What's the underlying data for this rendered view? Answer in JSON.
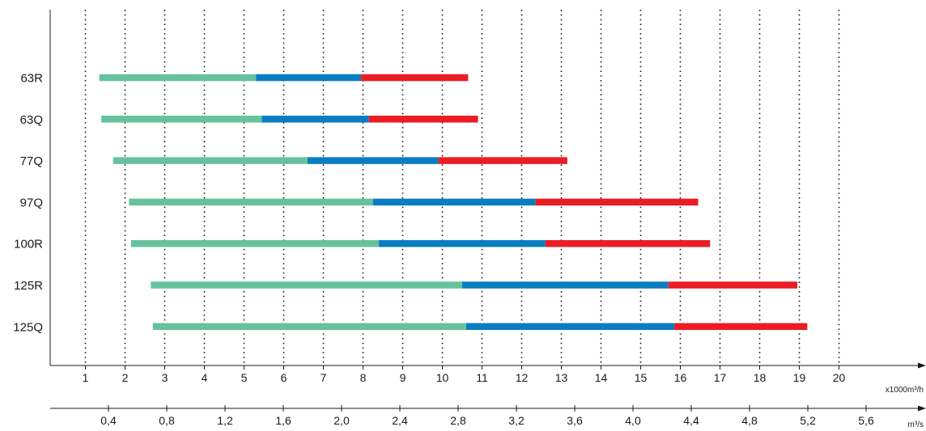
{
  "chart_data": {
    "type": "bar",
    "subtype": "stacked-horizontal-range",
    "categories": [
      "63R",
      "63Q",
      "77Q",
      "97Q",
      "100R",
      "125R",
      "125Q"
    ],
    "series": [
      {
        "color": "#66c29e",
        "ranges": [
          [
            1.35,
            5.3
          ],
          [
            1.4,
            5.45
          ],
          [
            1.7,
            6.6
          ],
          [
            2.1,
            8.25
          ],
          [
            2.15,
            8.4
          ],
          [
            2.65,
            10.5
          ],
          [
            2.7,
            10.6
          ]
        ]
      },
      {
        "color": "#0a7dc2",
        "ranges": [
          [
            5.3,
            7.95
          ],
          [
            5.45,
            8.15
          ],
          [
            6.6,
            9.9
          ],
          [
            8.25,
            12.35
          ],
          [
            8.4,
            12.6
          ],
          [
            10.5,
            15.7
          ],
          [
            10.6,
            15.85
          ]
        ]
      },
      {
        "color": "#ec1c24",
        "ranges": [
          [
            7.95,
            10.65
          ],
          [
            8.15,
            10.9
          ],
          [
            9.9,
            13.15
          ],
          [
            12.35,
            16.45
          ],
          [
            12.6,
            16.75
          ],
          [
            15.7,
            18.95
          ],
          [
            15.85,
            19.2
          ]
        ]
      }
    ],
    "x_axis": {
      "unit_label": "x1000m³/h",
      "ticks": [
        1,
        2,
        3,
        4,
        5,
        6,
        7,
        8,
        9,
        10,
        11,
        12,
        13,
        14,
        15,
        16,
        17,
        18,
        19,
        20
      ],
      "xlim": [
        0,
        21.1
      ]
    },
    "x_axis_secondary": {
      "unit_label": "m³/s",
      "ticks": [
        "0,4",
        "0,8",
        "1,2",
        "1,6",
        "2,0",
        "2,4",
        "2,8",
        "3,2",
        "3,6",
        "4,0",
        "4,4",
        "4,8",
        "5,2",
        "5,6"
      ],
      "tick_values": [
        0.4,
        0.8,
        1.2,
        1.6,
        2.0,
        2.4,
        2.8,
        3.2,
        3.6,
        4.0,
        4.4,
        4.8,
        5.2,
        5.6
      ],
      "xlim": [
        0,
        5.86
      ]
    },
    "grid": {
      "vertical_dotted": true,
      "at": [
        1,
        2,
        3,
        4,
        5,
        6,
        7,
        8,
        9,
        10,
        11,
        12,
        13,
        14,
        15,
        16,
        17,
        18,
        19,
        20
      ]
    },
    "legend": "none"
  }
}
